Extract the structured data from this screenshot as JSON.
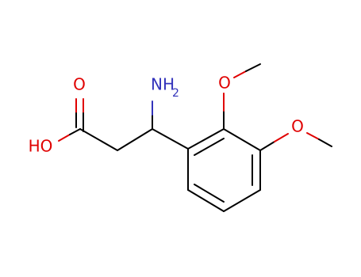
{
  "atoms": [
    {
      "label": "O"
    },
    {
      "label": "HO"
    },
    {
      "label": "NH",
      "subscript": "2"
    },
    {
      "label": "O"
    },
    {
      "label": "O"
    }
  ]
}
